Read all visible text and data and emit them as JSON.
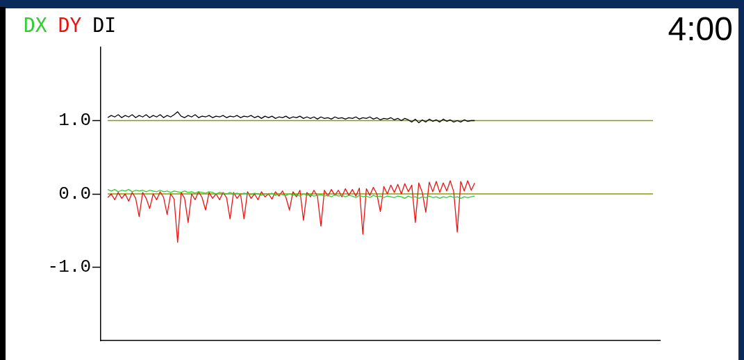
{
  "chart_data": {
    "type": "line",
    "annotations": [
      "4:00"
    ],
    "legend": "top left",
    "marker": "none",
    "line_style": "solid",
    "grid": false,
    "tick_labels": "y",
    "categories": [
      null,
      null,
      null,
      null,
      null,
      null,
      null,
      null,
      null,
      null,
      null,
      null,
      null,
      null,
      null,
      null,
      null,
      null,
      null,
      null,
      null,
      null,
      null,
      null,
      null,
      null,
      null,
      null,
      null,
      null,
      null,
      null,
      null,
      null,
      null,
      null,
      null,
      null,
      null,
      null,
      null,
      null,
      null,
      null,
      null,
      null,
      null,
      null,
      null,
      null,
      null,
      null,
      null,
      null,
      null,
      null,
      null,
      null,
      null,
      null,
      null,
      null,
      null,
      null,
      null,
      null,
      null,
      null,
      null,
      null,
      null,
      null,
      null,
      null,
      null,
      null,
      null,
      null,
      null,
      null,
      null,
      null,
      null,
      null,
      null,
      null,
      null,
      null,
      null,
      null,
      null,
      null,
      null,
      null,
      null,
      null,
      null,
      null,
      null,
      null,
      null,
      null,
      null,
      null,
      null,
      null,
      null,
      null,
      null,
      null,
      null,
      null,
      null,
      null,
      null,
      null,
      null,
      null,
      null,
      null,
      null,
      null,
      null,
      null,
      null,
      null,
      null,
      null,
      null,
      null,
      null,
      null,
      null,
      null,
      null,
      null,
      null,
      null,
      null,
      null,
      null,
      null,
      null,
      null,
      null,
      null,
      null,
      null,
      null,
      null,
      null,
      null,
      null,
      null,
      null,
      null,
      null,
      null,
      null,
      null,
      null
    ],
    "ylim": [
      -2,
      2
    ],
    "yticks": [
      {
        "value": 1,
        "label": "1.0"
      },
      {
        "value": 0,
        "label": "0.0"
      },
      {
        "value": -1,
        "label": "-1.0"
      }
    ],
    "ref_lines": [
      {
        "axis": "y",
        "value": 1,
        "color": "#8a9a00"
      },
      {
        "axis": "y",
        "value": 0,
        "color": "#8a9a00"
      }
    ],
    "series": [
      {
        "name": "DX",
        "color": "#33cc33",
        "values": [
          null,
          null,
          0.06,
          0.04,
          0.06,
          0.03,
          0.05,
          0.04,
          0.06,
          0.03,
          0.05,
          0.04,
          0.05,
          0.03,
          0.05,
          0.04,
          0.03,
          0.05,
          0.03,
          0.04,
          0.02,
          0.04,
          0.03,
          0.02,
          0.04,
          0.02,
          0.03,
          0.01,
          0.03,
          0.02,
          0.01,
          0.03,
          0.02,
          0.0,
          0.02,
          0.01,
          0.0,
          0.02,
          0.0,
          0.01,
          -0.01,
          0.01,
          0.0,
          -0.01,
          0.01,
          0.0,
          -0.02,
          0.0,
          -0.01,
          0.01,
          -0.02,
          0.0,
          -0.01,
          -0.02,
          0.0,
          -0.02,
          -0.01,
          -0.03,
          0.0,
          -0.02,
          -0.01,
          -0.03,
          -0.02,
          -0.01,
          -0.03,
          -0.02,
          -0.04,
          -0.01,
          -0.03,
          -0.02,
          -0.04,
          -0.02,
          -0.03,
          -0.05,
          -0.02,
          -0.04,
          -0.03,
          -0.05,
          -0.02,
          -0.04,
          -0.03,
          -0.05,
          -0.03,
          -0.04,
          -0.05,
          -0.03,
          -0.04,
          -0.06,
          -0.03,
          -0.05,
          -0.04,
          -0.06,
          -0.04,
          -0.05,
          -0.03,
          -0.05,
          -0.04,
          -0.06,
          -0.04,
          -0.05,
          -0.03,
          -0.05,
          -0.04,
          -0.06,
          -0.04,
          -0.05,
          -0.04,
          -0.03,
          null,
          null,
          null,
          null,
          null,
          null,
          null,
          null,
          null,
          null,
          null,
          null,
          null,
          null,
          null,
          null,
          null,
          null,
          null,
          null,
          null,
          null,
          null,
          null,
          null,
          null,
          null,
          null,
          null,
          null,
          null,
          null,
          null,
          null,
          null,
          null,
          null,
          null,
          null,
          null,
          null,
          null,
          null,
          null,
          null,
          null,
          null,
          null,
          null,
          null,
          null,
          null,
          null
        ]
      },
      {
        "name": "DY",
        "color": "#ee1111",
        "values": [
          null,
          null,
          -0.05,
          0.0,
          -0.08,
          0.02,
          -0.06,
          0.0,
          -0.1,
          0.02,
          -0.06,
          -0.31,
          0.02,
          -0.06,
          -0.2,
          0.0,
          -0.08,
          0.03,
          -0.05,
          -0.28,
          0.0,
          -0.07,
          -0.66,
          0.02,
          -0.06,
          -0.39,
          0.0,
          -0.08,
          0.03,
          -0.05,
          -0.22,
          0.02,
          -0.06,
          0.0,
          -0.08,
          0.02,
          -0.05,
          -0.34,
          0.02,
          -0.06,
          0.0,
          -0.34,
          0.03,
          -0.06,
          0.0,
          -0.08,
          0.03,
          -0.04,
          0.0,
          -0.07,
          0.03,
          -0.03,
          0.04,
          -0.05,
          -0.22,
          0.03,
          -0.04,
          0.05,
          -0.36,
          0.02,
          -0.04,
          0.05,
          -0.03,
          -0.44,
          0.05,
          -0.03,
          0.06,
          -0.02,
          0.05,
          -0.04,
          0.07,
          -0.02,
          0.06,
          -0.03,
          0.08,
          -0.55,
          0.07,
          -0.02,
          0.09,
          0.0,
          -0.24,
          0.1,
          0.0,
          0.12,
          0.02,
          0.13,
          0.0,
          0.14,
          0.03,
          0.12,
          -0.39,
          0.15,
          0.02,
          -0.25,
          0.16,
          0.03,
          0.17,
          0.02,
          0.15,
          0.04,
          0.18,
          0.03,
          -0.52,
          0.17,
          0.04,
          0.18,
          0.05,
          0.15,
          null,
          null,
          null,
          null,
          null,
          null,
          null,
          null,
          null,
          null,
          null,
          null,
          null,
          null,
          null,
          null,
          null,
          null,
          null,
          null,
          null,
          null,
          null,
          null,
          null,
          null,
          null,
          null,
          null,
          null,
          null,
          null,
          null,
          null,
          null,
          null,
          null,
          null,
          null,
          null,
          null,
          null,
          null,
          null,
          null,
          null,
          null,
          null,
          null,
          null,
          null,
          null,
          null
        ]
      },
      {
        "name": "DI",
        "color": "#000000",
        "values": [
          null,
          null,
          1.04,
          1.07,
          1.05,
          1.08,
          1.04,
          1.07,
          1.05,
          1.08,
          1.04,
          1.07,
          1.05,
          1.08,
          1.04,
          1.07,
          1.05,
          1.08,
          1.04,
          1.07,
          1.05,
          1.08,
          1.12,
          1.06,
          1.04,
          1.07,
          1.05,
          1.08,
          1.04,
          1.06,
          1.05,
          1.07,
          1.04,
          1.06,
          1.05,
          1.07,
          1.04,
          1.06,
          1.05,
          1.07,
          1.04,
          1.06,
          1.05,
          1.07,
          1.04,
          1.06,
          1.03,
          1.06,
          1.04,
          1.06,
          1.03,
          1.05,
          1.04,
          1.06,
          1.03,
          1.05,
          1.04,
          1.06,
          1.03,
          1.05,
          1.03,
          1.05,
          1.02,
          1.05,
          1.03,
          1.04,
          1.02,
          1.05,
          1.03,
          1.04,
          1.02,
          1.04,
          1.03,
          1.05,
          1.02,
          1.04,
          1.03,
          1.05,
          1.02,
          1.04,
          1.01,
          1.03,
          1.02,
          1.04,
          1.01,
          1.03,
          1.0,
          1.03,
          1.01,
          0.98,
          1.02,
          0.97,
          1.01,
          0.98,
          1.02,
          0.99,
          1.01,
          0.98,
          1.02,
          0.99,
          1.01,
          0.98,
          1.0,
          0.98,
          1.01,
          0.99,
          1.0,
          1.0,
          null,
          null,
          null,
          null,
          null,
          null,
          null,
          null,
          null,
          null,
          null,
          null,
          null,
          null,
          null,
          null,
          null,
          null,
          null,
          null,
          null,
          null,
          null,
          null,
          null,
          null,
          null,
          null,
          null,
          null,
          null,
          null,
          null,
          null,
          null,
          null,
          null,
          null,
          null,
          null,
          null,
          null,
          null,
          null,
          null,
          null,
          null,
          null,
          null,
          null,
          null,
          null,
          null
        ]
      }
    ]
  }
}
